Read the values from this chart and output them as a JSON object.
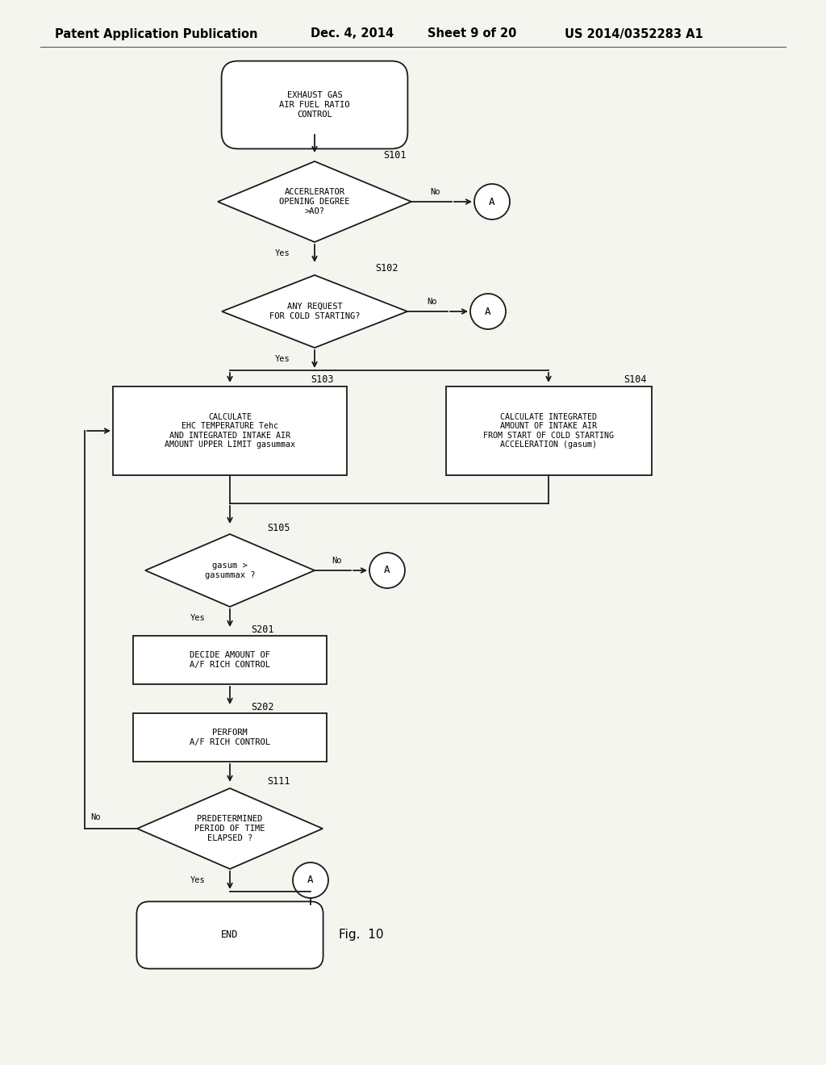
{
  "title_header": "Patent Application Publication",
  "date": "Dec. 4, 2014",
  "sheet": "Sheet 9 of 20",
  "patent_num": "US 2014/0352283 A1",
  "fig_label": "Fig.  10",
  "bg_color": "#f5f5f0",
  "line_color": "#1a1a1a",
  "header_fontsize": 10.5,
  "body_fontsize": 7.5,
  "step_fontsize": 8.5,
  "note_fontsize": 9
}
